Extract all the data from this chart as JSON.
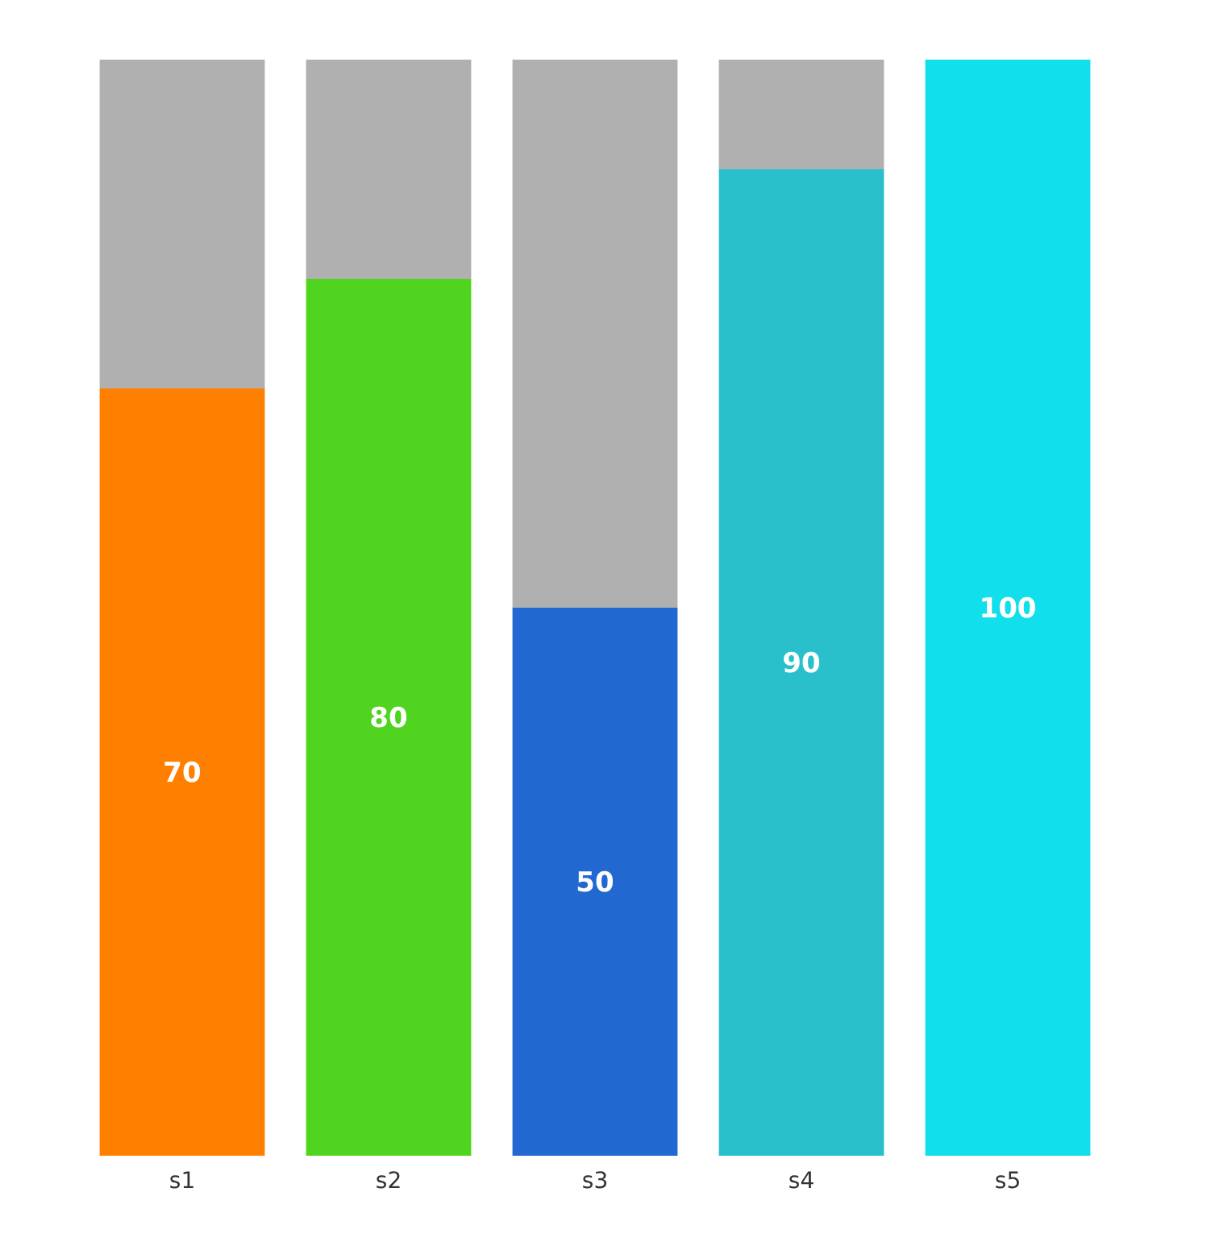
{
  "chart_data": {
    "type": "bar",
    "stacked": true,
    "categories": [
      "s1",
      "s2",
      "s3",
      "s4",
      "s5"
    ],
    "ylim": [
      0,
      100
    ],
    "series": [
      {
        "colors": [
          "#ff8000",
          "#50d41f",
          "#2268d1",
          "#2ac0cb",
          "#12dfec"
        ],
        "values": [
          70,
          80,
          50,
          90,
          100
        ],
        "value_labels": [
          "70",
          "80",
          "50",
          "90",
          "100"
        ]
      },
      {
        "color": "#b0b0b0",
        "values": [
          30,
          20,
          50,
          10,
          0
        ]
      }
    ]
  }
}
